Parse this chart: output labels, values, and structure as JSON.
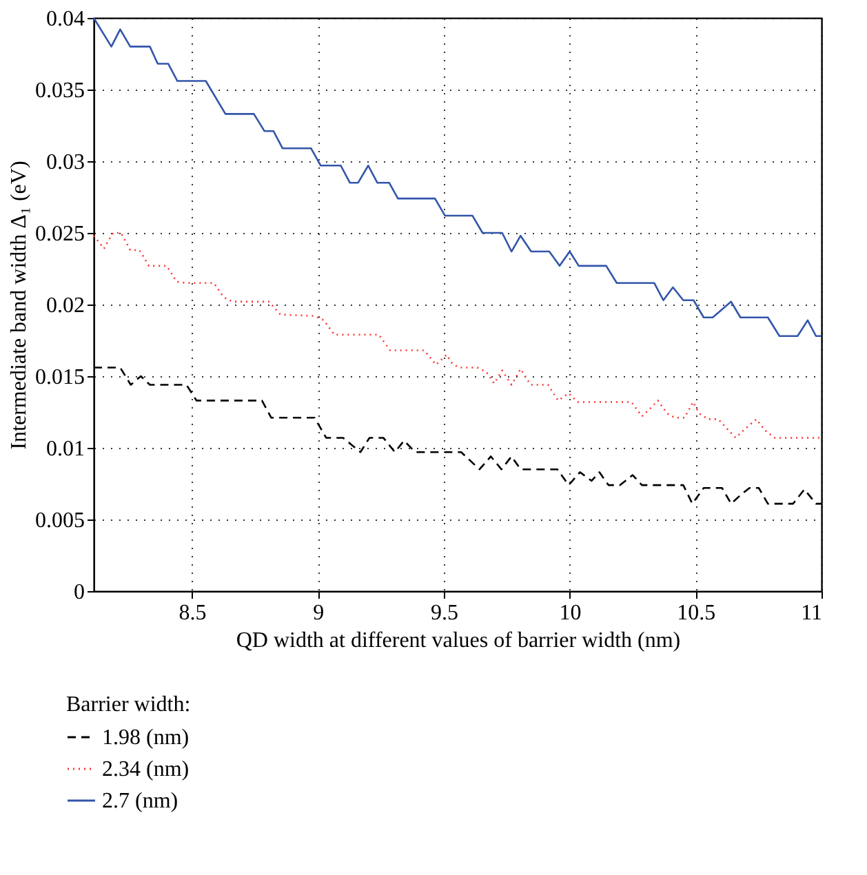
{
  "chart_data": {
    "type": "line",
    "xlabel": "QD width at different values of barrier width (nm)",
    "ylabel": "Intermediate band width Δ₁ (eV)",
    "legend_title": "Barrier width:",
    "legend": "bottom left",
    "grid": true,
    "xlim": [
      8.11,
      11
    ],
    "xticks": [
      8.5,
      9,
      9.5,
      10,
      10.5,
      11
    ],
    "ylim": [
      0,
      0.04
    ],
    "yticks": [
      0,
      0.005,
      0.01,
      0.015,
      0.02,
      0.025,
      0.03,
      0.035,
      0.04
    ],
    "series": [
      {
        "name": "1.98 (nm)",
        "color": "#000000",
        "line_style": "dashed",
        "x": [
          8.11,
          8.215,
          8.257,
          8.297,
          8.333,
          8.478,
          8.518,
          8.778,
          8.815,
          8.987,
          9.033,
          9.1,
          9.169,
          9.205,
          9.26,
          9.306,
          9.342,
          9.387,
          9.569,
          9.642,
          9.687,
          9.729,
          9.769,
          9.805,
          9.951,
          9.996,
          10.041,
          10.087,
          10.118,
          10.154,
          10.2,
          10.25,
          10.287,
          10.451,
          10.487,
          10.532,
          10.605,
          10.641,
          10.678,
          10.714,
          10.751,
          10.787,
          10.887,
          10.932,
          10.978,
          11.0
        ],
        "values": [
          0.0156,
          0.0156,
          0.0144,
          0.015,
          0.0144,
          0.0144,
          0.0133,
          0.0133,
          0.0121,
          0.0121,
          0.0107,
          0.0107,
          0.0097,
          0.0107,
          0.0107,
          0.0097,
          0.0105,
          0.0097,
          0.0097,
          0.0085,
          0.0094,
          0.0085,
          0.0094,
          0.0085,
          0.0085,
          0.0074,
          0.0083,
          0.0077,
          0.0083,
          0.0074,
          0.0074,
          0.0081,
          0.0074,
          0.0074,
          0.0061,
          0.0072,
          0.0072,
          0.0061,
          0.0067,
          0.0072,
          0.0072,
          0.0061,
          0.0061,
          0.0071,
          0.0061,
          0.0061
        ]
      },
      {
        "name": "2.34 (nm)",
        "color": "#ff3333",
        "line_style": "dotted",
        "x": [
          8.11,
          8.151,
          8.166,
          8.188,
          8.218,
          8.237,
          8.255,
          8.291,
          8.309,
          8.329,
          8.4,
          8.439,
          8.478,
          8.587,
          8.627,
          8.66,
          8.806,
          8.851,
          8.987,
          9.024,
          9.065,
          9.242,
          9.287,
          9.423,
          9.469,
          9.511,
          9.533,
          9.56,
          9.633,
          9.669,
          9.7,
          9.732,
          9.769,
          9.805,
          9.845,
          9.914,
          9.954,
          9.996,
          10.032,
          10.245,
          10.287,
          10.323,
          10.35,
          10.387,
          10.418,
          10.456,
          10.49,
          10.514,
          10.55,
          10.59,
          10.632,
          10.659,
          10.695,
          10.741,
          10.777,
          10.814,
          10.959,
          11.0
        ],
        "values": [
          0.0248,
          0.0239,
          0.0244,
          0.025,
          0.025,
          0.0244,
          0.0238,
          0.0238,
          0.0233,
          0.0227,
          0.0227,
          0.0216,
          0.0215,
          0.0215,
          0.0205,
          0.0202,
          0.0202,
          0.0193,
          0.0192,
          0.0189,
          0.0179,
          0.0179,
          0.0168,
          0.0168,
          0.0158,
          0.0165,
          0.0159,
          0.0156,
          0.0156,
          0.0153,
          0.0145,
          0.0154,
          0.0144,
          0.0155,
          0.0144,
          0.0144,
          0.0133,
          0.0138,
          0.0132,
          0.0132,
          0.0122,
          0.0128,
          0.0133,
          0.0124,
          0.0121,
          0.0121,
          0.0132,
          0.0124,
          0.012,
          0.012,
          0.0112,
          0.0107,
          0.0113,
          0.012,
          0.0112,
          0.0107,
          0.0107,
          0.0107
        ]
      },
      {
        "name": "2.7 (nm)",
        "color": "#3355aa",
        "line_style": "solid",
        "x": [
          8.11,
          8.18,
          8.215,
          8.255,
          8.333,
          8.364,
          8.406,
          8.442,
          8.555,
          8.633,
          8.746,
          8.788,
          8.824,
          8.86,
          8.973,
          9.011,
          9.091,
          9.127,
          9.16,
          9.2,
          9.236,
          9.283,
          9.318,
          9.465,
          9.505,
          9.614,
          9.654,
          9.732,
          9.769,
          9.805,
          9.847,
          9.919,
          9.96,
          10.0,
          10.036,
          10.145,
          10.187,
          10.336,
          10.372,
          10.41,
          10.451,
          10.492,
          10.532,
          10.568,
          10.641,
          10.678,
          10.787,
          10.833,
          10.905,
          10.945,
          10.978,
          11.0
        ],
        "values": [
          0.04,
          0.038,
          0.0392,
          0.038,
          0.038,
          0.0368,
          0.0368,
          0.0356,
          0.0356,
          0.0333,
          0.0333,
          0.0321,
          0.0321,
          0.0309,
          0.0309,
          0.0297,
          0.0297,
          0.0285,
          0.0285,
          0.0297,
          0.0285,
          0.0285,
          0.0274,
          0.0274,
          0.0262,
          0.0262,
          0.025,
          0.025,
          0.0237,
          0.0248,
          0.0237,
          0.0237,
          0.0227,
          0.0237,
          0.0227,
          0.0227,
          0.0215,
          0.0215,
          0.0203,
          0.0212,
          0.0203,
          0.0203,
          0.0191,
          0.0191,
          0.0202,
          0.0191,
          0.0191,
          0.0178,
          0.0178,
          0.0189,
          0.0178,
          0.0178
        ]
      }
    ]
  }
}
